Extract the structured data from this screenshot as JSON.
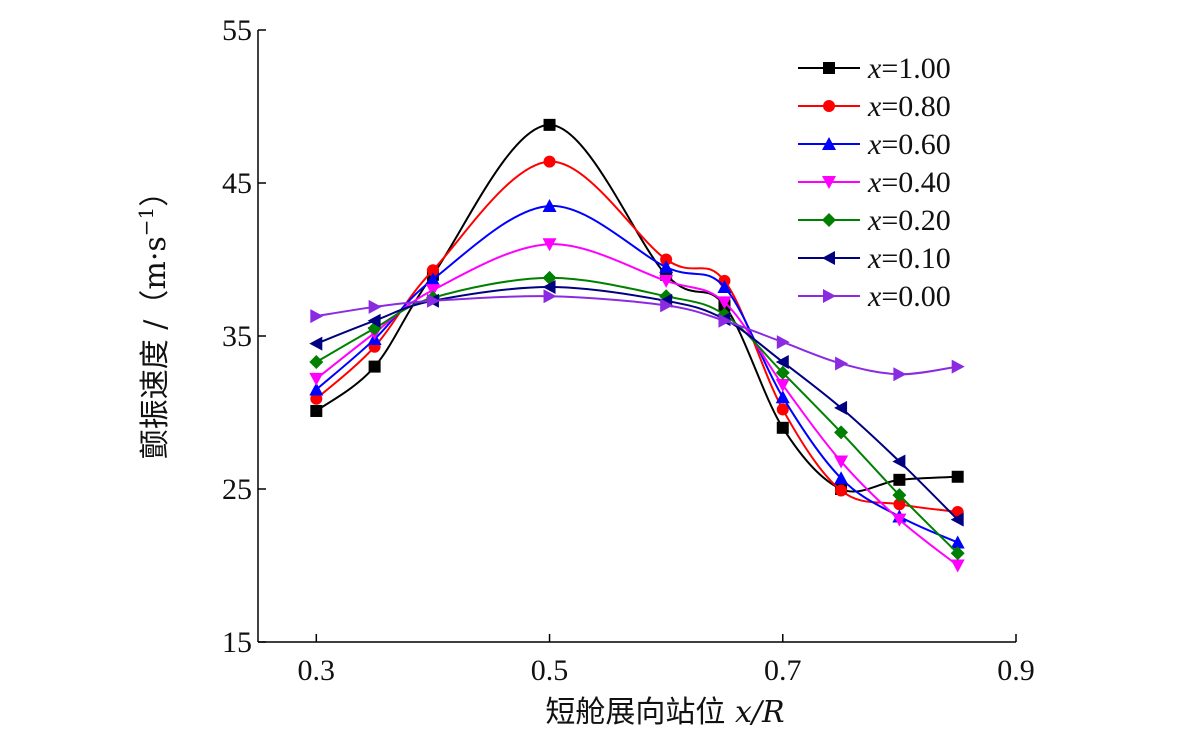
{
  "chart_data": {
    "type": "line",
    "title": "",
    "xlabel": "短舱展向站位 x/R",
    "xlabel_text": "短舱展向站位 ",
    "xlabel_var": "x/R",
    "ylabel": "颤振速度 /（m·s⁻¹）",
    "ylabel_text": "颤振速度 /（m·s",
    "ylabel_sup": "−1",
    "ylabel_close": "）",
    "xlim": [
      0.25,
      0.9
    ],
    "ylim": [
      15,
      55
    ],
    "xticks": [
      0.3,
      0.5,
      0.7,
      0.9
    ],
    "xtick_labels": [
      "0.3",
      "0.5",
      "0.7",
      "0.9"
    ],
    "yticks": [
      15,
      25,
      35,
      45,
      55
    ],
    "ytick_labels": [
      "15",
      "25",
      "35",
      "45",
      "55"
    ],
    "grid": false,
    "legend_position": "top-right",
    "x": [
      0.3,
      0.35,
      0.4,
      0.5,
      0.6,
      0.65,
      0.7,
      0.75,
      0.8,
      0.85
    ],
    "series": [
      {
        "name": "x=1.00",
        "name_var": "x",
        "name_val": "=1.00",
        "color": "#000000",
        "marker": "square",
        "values": [
          30.1,
          33.0,
          39.0,
          48.8,
          39.0,
          37.0,
          29.0,
          25.0,
          25.6,
          25.8
        ]
      },
      {
        "name": "x=0.80",
        "name_var": "x",
        "name_val": "=0.80",
        "color": "#ff0000",
        "marker": "circle",
        "values": [
          30.9,
          34.3,
          39.3,
          46.4,
          40.0,
          38.6,
          30.2,
          24.9,
          24.0,
          23.5
        ]
      },
      {
        "name": "x=0.60",
        "name_var": "x",
        "name_val": "=0.60",
        "color": "#0000ff",
        "marker": "triangle-up",
        "values": [
          31.5,
          34.8,
          38.7,
          43.5,
          39.5,
          38.2,
          31.0,
          25.7,
          23.2,
          21.5
        ]
      },
      {
        "name": "x=0.40",
        "name_var": "x",
        "name_val": "=0.40",
        "color": "#ff00ff",
        "marker": "triangle-down",
        "values": [
          32.2,
          35.2,
          38.0,
          41.0,
          38.6,
          37.2,
          31.8,
          26.8,
          23.0,
          20.0
        ]
      },
      {
        "name": "x=0.20",
        "name_var": "x",
        "name_val": "=0.20",
        "color": "#008000",
        "marker": "diamond",
        "values": [
          33.3,
          35.5,
          37.5,
          38.8,
          37.6,
          36.4,
          32.6,
          28.7,
          24.6,
          20.8
        ]
      },
      {
        "name": "x=0.10",
        "name_var": "x",
        "name_val": "=0.10",
        "color": "#000080",
        "marker": "triangle-left",
        "values": [
          34.5,
          36.0,
          37.3,
          38.2,
          37.3,
          36.1,
          33.3,
          30.3,
          26.8,
          23.0
        ]
      },
      {
        "name": "x=0.00",
        "name_var": "x",
        "name_val": "=0.00",
        "color": "#8a2be2",
        "marker": "triangle-right",
        "values": [
          36.3,
          36.9,
          37.3,
          37.6,
          37.0,
          36.0,
          34.6,
          33.2,
          32.5,
          33.0
        ]
      }
    ]
  }
}
